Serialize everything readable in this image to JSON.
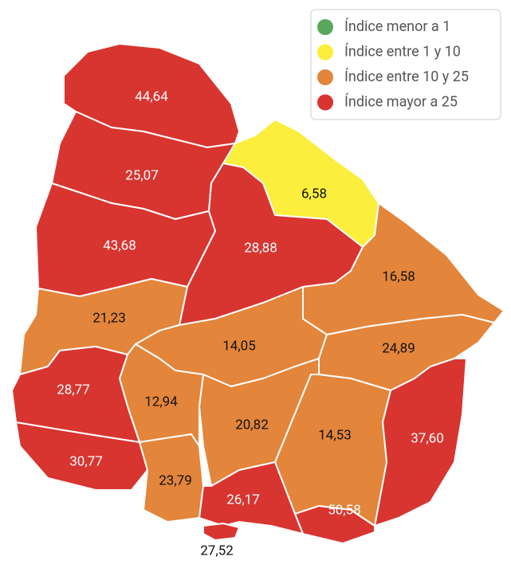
{
  "legend": [
    {
      "name": "Índice menor a 1",
      "color": "#5aa75c"
    },
    {
      "name": "Índice entre 1 y 10",
      "color": "#fbee3c"
    },
    {
      "name": "Índice entre 10 y 25",
      "color": "#e3853a"
    },
    {
      "name": "Índice mayor a 25",
      "color": "#d83530"
    }
  ],
  "regions": [
    {
      "label": "44,64",
      "color": "#d83530"
    },
    {
      "label": "25,07",
      "color": "#d83530"
    },
    {
      "label": "43,68",
      "color": "#d83530"
    },
    {
      "label": "6,58",
      "color": "#fbee3c"
    },
    {
      "label": "28,88",
      "color": "#d83530"
    },
    {
      "label": "21,23",
      "color": "#e3853a"
    },
    {
      "label": "14,05",
      "color": "#e3853a"
    },
    {
      "label": "16,58",
      "color": "#e3853a"
    },
    {
      "label": "24,89",
      "color": "#e3853a"
    },
    {
      "label": "37,60",
      "color": "#d83530"
    },
    {
      "label": "14,53",
      "color": "#e3853a"
    },
    {
      "label": "50,58",
      "color": "#d83530"
    },
    {
      "label": "20,82",
      "color": "#e3853a"
    },
    {
      "label": "12,94",
      "color": "#e3853a"
    },
    {
      "label": "28,77",
      "color": "#d83530"
    },
    {
      "label": "30,77",
      "color": "#d83530"
    },
    {
      "label": "23,79",
      "color": "#e3853a"
    },
    {
      "label": "26,17",
      "color": "#d83530"
    },
    {
      "label": "27,52",
      "color": "#d83530"
    }
  ]
}
